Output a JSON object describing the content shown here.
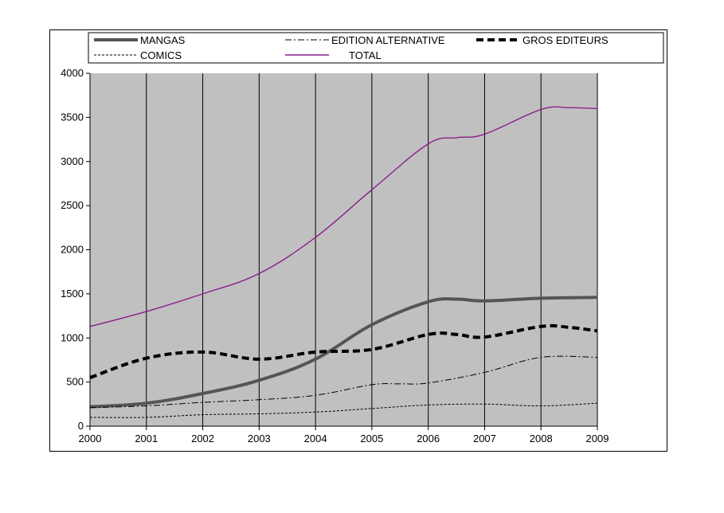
{
  "chart_data": {
    "type": "line",
    "title": "",
    "xlabel": "",
    "ylabel": "",
    "xlim": [
      2000,
      2009
    ],
    "ylim": [
      0,
      4000
    ],
    "x_ticks": [
      2000,
      2001,
      2002,
      2003,
      2004,
      2005,
      2006,
      2007,
      2008,
      2009
    ],
    "y_ticks": [
      0,
      500,
      1000,
      1500,
      2000,
      2500,
      3000,
      3500,
      4000
    ],
    "grid": "vertical",
    "plot_background": "#c0c0c0",
    "legend_position": "top",
    "series": [
      {
        "name": "MANGAS",
        "style": "thick-solid",
        "color": "#555555",
        "x": [
          2000,
          2001,
          2002,
          2003,
          2004,
          2005,
          2006,
          2006.5,
          2007,
          2008,
          2009
        ],
        "y": [
          220,
          260,
          370,
          520,
          760,
          1150,
          1410,
          1440,
          1420,
          1450,
          1460
        ]
      },
      {
        "name": "EDITION ALTERNATIVE",
        "style": "dash-dot",
        "color": "#000000",
        "x": [
          2000,
          2001,
          2002,
          2003,
          2004,
          2005,
          2005.5,
          2006,
          2007,
          2008,
          2009
        ],
        "y": [
          210,
          230,
          270,
          300,
          350,
          470,
          480,
          490,
          610,
          780,
          780
        ]
      },
      {
        "name": "GROS EDITEURS",
        "style": "thick-dashed",
        "color": "#000000",
        "x": [
          2000,
          2001,
          2002,
          2003,
          2004,
          2005,
          2006,
          2006.5,
          2007,
          2008,
          2008.5,
          2009
        ],
        "y": [
          550,
          770,
          840,
          760,
          840,
          870,
          1040,
          1040,
          1010,
          1130,
          1120,
          1080
        ]
      },
      {
        "name": "COMICS",
        "style": "dashed",
        "color": "#000000",
        "x": [
          2000,
          2001,
          2002,
          2003,
          2004,
          2005,
          2006,
          2007,
          2008,
          2009
        ],
        "y": [
          100,
          100,
          130,
          140,
          160,
          200,
          240,
          250,
          230,
          260
        ]
      },
      {
        "name": "TOTAL",
        "style": "thin-solid",
        "color": "#8b1e8b",
        "x": [
          2000,
          2001,
          2002,
          2003,
          2004,
          2005,
          2006,
          2006.5,
          2007,
          2008,
          2008.5,
          2009
        ],
        "y": [
          1130,
          1300,
          1500,
          1730,
          2140,
          2680,
          3200,
          3270,
          3310,
          3590,
          3610,
          3600
        ]
      }
    ]
  }
}
